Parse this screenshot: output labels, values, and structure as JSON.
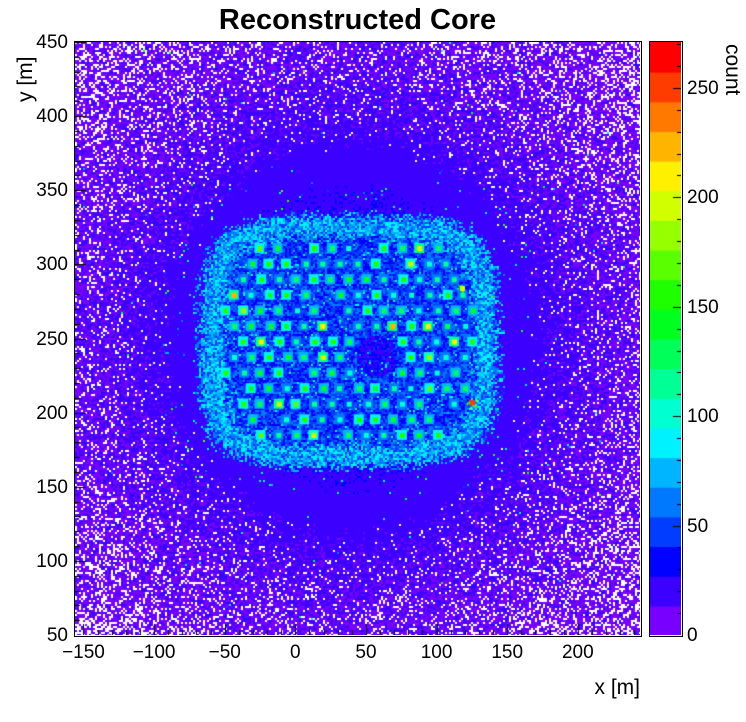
{
  "figure": {
    "background": "#ffffff",
    "frame_color": "#000000"
  },
  "chart_data": {
    "type": "heatmap",
    "title": "Reconstructed Core",
    "xlabel": "x [m]",
    "ylabel": "y [m]",
    "zlabel": "count",
    "xlim": [
      -156,
      244
    ],
    "ylim": [
      50,
      450
    ],
    "zlim": [
      0,
      271
    ],
    "x_major_ticks": [
      -150,
      -100,
      -50,
      0,
      50,
      100,
      150,
      200
    ],
    "x_minor_step": 10,
    "y_major_ticks": [
      50,
      100,
      150,
      200,
      250,
      300,
      350,
      400,
      450
    ],
    "y_minor_step": 10,
    "z_major_ticks": [
      0,
      50,
      100,
      150,
      200,
      250
    ],
    "z_minor_step": 10,
    "palette": {
      "name": "root-rainbow",
      "bands": 20,
      "hue_start": 268,
      "hue_end": 0
    },
    "field": {
      "background_count_min": 5,
      "background_count_max": 16,
      "halo_center_x": 40,
      "halo_center_y": 250,
      "halo_amplitude": 22,
      "halo_radius_m": 130,
      "zero_speckle_start_r": 0.62,
      "zero_speckle_slope": 0.5,
      "near_rim_speckle_prob": 0.012,
      "outlier_speckle_prob": 0.0015
    },
    "array_region": {
      "center_x": 38,
      "center_y": 248,
      "half_width_m": 100,
      "half_height_m": 80,
      "rim_count_min": 45,
      "rim_count_max": 95,
      "interior_count_min": 28,
      "interior_count_max": 62,
      "gap_x": 58,
      "gap_y": 238,
      "gap_radius_m": 14
    },
    "detector_grid": {
      "spacing_m": 12.5,
      "row_spacing_m": 10.5,
      "dot_count_min": 95,
      "dot_count_max": 165,
      "hot_fraction": 0.07,
      "missing_fraction": 0.07,
      "dot_radius_m": 2
    },
    "hot_spots": [
      {
        "x": 118,
        "y": 284,
        "count": 190
      },
      {
        "x": 125,
        "y": 207,
        "count": 250
      }
    ]
  }
}
